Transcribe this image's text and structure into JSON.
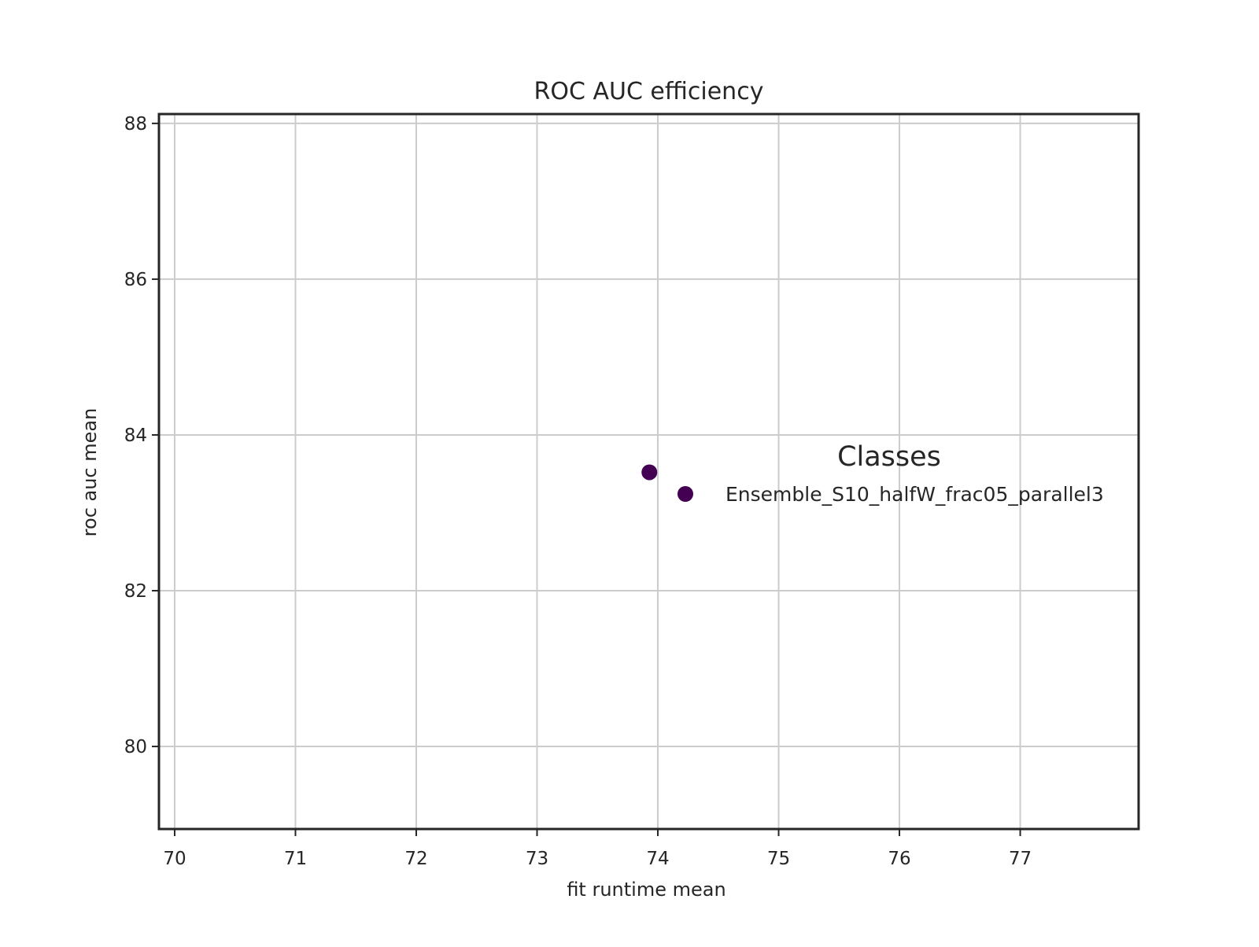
{
  "chart_data": {
    "type": "scatter",
    "title": "ROC AUC efficiency",
    "xlabel": "fit runtime mean",
    "ylabel": "roc auc mean",
    "xlim": [
      69.87,
      77.98
    ],
    "ylim": [
      78.94,
      88.12
    ],
    "xticks": [
      70,
      71,
      72,
      73,
      74,
      75,
      76,
      77
    ],
    "yticks": [
      80,
      82,
      84,
      86,
      88
    ],
    "grid": true,
    "legend": {
      "title": "Classes",
      "placement": "center-right",
      "entries": [
        {
          "label": "Ensemble_S10_halfW_frac05_parallel3",
          "color": "#440154"
        }
      ]
    },
    "series": [
      {
        "name": "Ensemble_S10_halfW_frac05_parallel3",
        "color": "#440154",
        "points": [
          {
            "x": 73.93,
            "y": 83.52
          }
        ]
      }
    ]
  }
}
